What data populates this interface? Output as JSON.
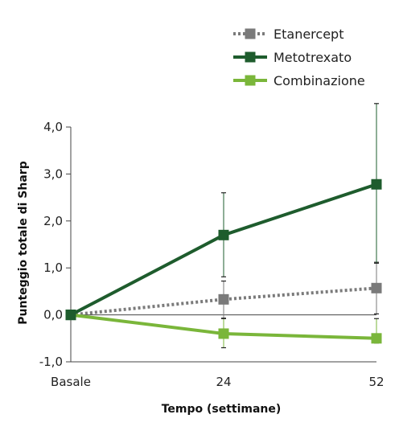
{
  "chart_data": {
    "type": "line",
    "xlabel": "Tempo (settimane)",
    "ylabel": "Punteggio totale di Sharp",
    "categories": [
      "Basale",
      "24",
      "52"
    ],
    "ylim": [
      -1.0,
      4.0
    ],
    "yticks": [
      -1.0,
      0.0,
      1.0,
      2.0,
      3.0,
      4.0
    ],
    "ytick_labels": [
      "-1,0",
      "0,0",
      "1,0",
      "2,0",
      "3,0",
      "4,0"
    ],
    "grid": false,
    "legend_position": "top-right",
    "series": [
      {
        "name": "Etanercept",
        "color": "#7a7a7a",
        "line_style": "dotted",
        "values": [
          0.0,
          0.33,
          0.57
        ],
        "error_low": [
          0.0,
          -0.07,
          0.02
        ],
        "error_high": [
          0.0,
          0.72,
          1.12
        ]
      },
      {
        "name": "Metotrexato",
        "color": "#1e5c2d",
        "line_style": "solid",
        "values": [
          0.0,
          1.7,
          2.78
        ],
        "error_low": [
          0.0,
          0.81,
          1.1
        ],
        "error_high": [
          0.0,
          2.6,
          4.5
        ]
      },
      {
        "name": "Combinazione",
        "color": "#7ab63a",
        "line_style": "solid",
        "values": [
          0.0,
          -0.4,
          -0.5
        ],
        "error_low": [
          0.0,
          -0.7,
          -0.6
        ],
        "error_high": [
          0.0,
          -0.08,
          -0.08
        ]
      }
    ]
  }
}
